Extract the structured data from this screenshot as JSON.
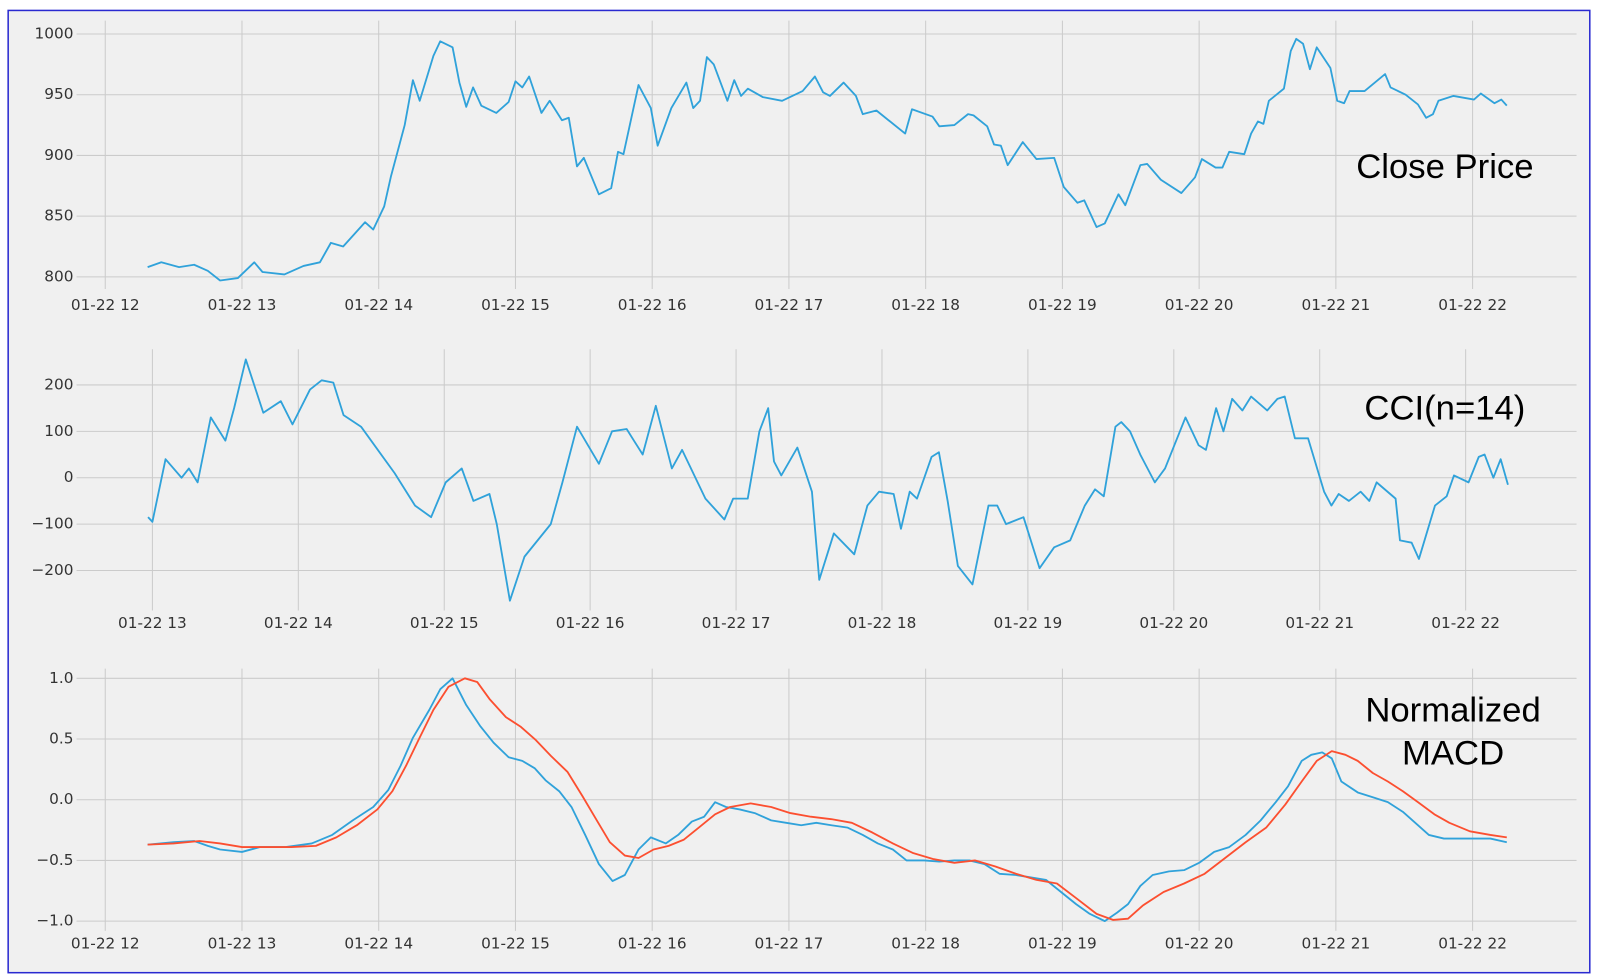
{
  "chart_data": [
    {
      "type": "line",
      "annotation": [
        "Close Price"
      ],
      "xlim": [
        11.79,
        22.76
      ],
      "xticks": [
        {
          "value": 12,
          "label": "01-22 12"
        },
        {
          "value": 13,
          "label": "01-22 13"
        },
        {
          "value": 14,
          "label": "01-22 14"
        },
        {
          "value": 15,
          "label": "01-22 15"
        },
        {
          "value": 16,
          "label": "01-22 16"
        },
        {
          "value": 17,
          "label": "01-22 17"
        },
        {
          "value": 18,
          "label": "01-22 18"
        },
        {
          "value": 19,
          "label": "01-22 19"
        },
        {
          "value": 20,
          "label": "01-22 20"
        },
        {
          "value": 21,
          "label": "01-22 21"
        },
        {
          "value": 22,
          "label": "01-22 22"
        }
      ],
      "ylim": [
        790,
        1011
      ],
      "yticks": [
        800,
        850,
        900,
        950,
        1000
      ],
      "grid": true,
      "series": [
        {
          "color": "#30a2da",
          "x": [
            12.31,
            12.41,
            12.54,
            12.65,
            12.75,
            12.84,
            12.97,
            13.09,
            13.15,
            13.31,
            13.45,
            13.57,
            13.65,
            13.74,
            13.9,
            13.96,
            14.04,
            14.09,
            14.19,
            14.25,
            14.3,
            14.4,
            14.45,
            14.54,
            14.59,
            14.64,
            14.69,
            14.75,
            14.86,
            14.95,
            15.0,
            15.05,
            15.1,
            15.19,
            15.25,
            15.34,
            15.39,
            15.45,
            15.5,
            15.61,
            15.7,
            15.75,
            15.79,
            15.9,
            15.99,
            16.04,
            16.14,
            16.25,
            16.3,
            16.35,
            16.4,
            16.45,
            16.55,
            16.6,
            16.65,
            16.7,
            16.81,
            16.95,
            17.1,
            17.19,
            17.25,
            17.3,
            17.4,
            17.49,
            17.54,
            17.64,
            17.85,
            17.9,
            18.05,
            18.1,
            18.21,
            18.31,
            18.35,
            18.45,
            18.5,
            18.55,
            18.6,
            18.71,
            18.81,
            18.94,
            19.01,
            19.11,
            19.16,
            19.25,
            19.31,
            19.41,
            19.46,
            19.57,
            19.62,
            19.72,
            19.87,
            19.97,
            20.02,
            20.12,
            20.17,
            20.22,
            20.33,
            20.38,
            20.43,
            20.47,
            20.51,
            20.62,
            20.67,
            20.71,
            20.76,
            20.81,
            20.86,
            20.96,
            21.01,
            21.06,
            21.1,
            21.21,
            21.36,
            21.4,
            21.51,
            21.6,
            21.66,
            21.71,
            21.75,
            21.86,
            22.01,
            22.06,
            22.16,
            22.21,
            22.25
          ],
          "values": [
            808,
            812,
            808,
            810,
            805,
            797,
            799,
            812,
            804,
            802,
            809,
            812,
            828,
            825,
            845,
            839,
            858,
            883,
            925,
            962,
            945,
            982,
            994,
            989,
            960,
            940,
            956,
            941,
            935,
            944,
            961,
            956,
            965,
            935,
            945,
            929,
            931,
            891,
            898,
            868,
            873,
            903,
            901,
            958,
            939,
            908,
            939,
            960,
            939,
            945,
            981,
            975,
            945,
            962,
            949,
            955,
            948,
            945,
            953,
            965,
            952,
            949,
            960,
            949,
            934,
            937,
            918,
            938,
            932,
            924,
            925,
            934,
            933,
            924,
            909,
            908,
            892,
            911,
            897,
            898,
            874,
            861,
            863,
            841,
            844,
            868,
            859,
            892,
            893,
            880,
            869,
            882,
            897,
            890,
            890,
            903,
            901,
            918,
            928,
            926,
            945,
            955,
            986,
            996,
            992,
            971,
            989,
            972,
            945,
            943,
            953,
            953,
            967,
            956,
            950,
            942,
            931,
            934,
            945,
            949,
            946,
            951,
            943,
            946,
            941
          ]
        }
      ]
    },
    {
      "type": "line",
      "annotation": [
        "CCI(n=14)"
      ],
      "xlim": [
        12.48,
        22.76
      ],
      "xticks": [
        {
          "value": 13,
          "label": "01-22 13"
        },
        {
          "value": 14,
          "label": "01-22 14"
        },
        {
          "value": 15,
          "label": "01-22 15"
        },
        {
          "value": 16,
          "label": "01-22 16"
        },
        {
          "value": 17,
          "label": "01-22 17"
        },
        {
          "value": 18,
          "label": "01-22 18"
        },
        {
          "value": 19,
          "label": "01-22 19"
        },
        {
          "value": 20,
          "label": "01-22 20"
        },
        {
          "value": 21,
          "label": "01-22 21"
        },
        {
          "value": 22,
          "label": "01-22 22"
        }
      ],
      "ylim": [
        -286,
        277
      ],
      "yticks": [
        {
          "value": -200,
          "label": "−200"
        },
        {
          "value": -100,
          "label": "−100"
        },
        0,
        100,
        200
      ],
      "grid": true,
      "series": [
        {
          "color": "#30a2da",
          "x": [
            12.97,
            13.0,
            13.09,
            13.2,
            13.25,
            13.31,
            13.4,
            13.5,
            13.56,
            13.64,
            13.76,
            13.88,
            13.96,
            14.08,
            14.16,
            14.24,
            14.31,
            14.43,
            14.66,
            14.8,
            14.91,
            15.01,
            15.12,
            15.2,
            15.31,
            15.36,
            15.45,
            15.55,
            15.73,
            15.81,
            15.91,
            16.06,
            16.15,
            16.25,
            16.36,
            16.45,
            16.56,
            16.63,
            16.79,
            16.92,
            16.98,
            17.08,
            17.16,
            17.22,
            17.26,
            17.31,
            17.42,
            17.52,
            17.57,
            17.67,
            17.81,
            17.9,
            17.98,
            18.08,
            18.13,
            18.19,
            18.24,
            18.34,
            18.39,
            18.45,
            18.52,
            18.62,
            18.73,
            18.79,
            18.85,
            18.97,
            19.08,
            19.18,
            19.29,
            19.39,
            19.46,
            19.52,
            19.6,
            19.64,
            19.7,
            19.77,
            19.87,
            19.94,
            20.08,
            20.17,
            20.22,
            20.29,
            20.34,
            20.4,
            20.47,
            20.53,
            20.64,
            20.71,
            20.76,
            20.83,
            20.92,
            21.03,
            21.08,
            21.13,
            21.2,
            21.28,
            21.34,
            21.39,
            21.52,
            21.55,
            21.63,
            21.68,
            21.79,
            21.87,
            21.92,
            22.02,
            22.09,
            22.13,
            22.19,
            22.24,
            22.29
          ],
          "values": [
            -85,
            -95,
            40,
            0,
            20,
            -10,
            130,
            80,
            150,
            255,
            140,
            165,
            115,
            190,
            210,
            205,
            135,
            110,
            10,
            -60,
            -85,
            -10,
            20,
            -50,
            -35,
            -100,
            -265,
            -170,
            -100,
            -10,
            110,
            30,
            100,
            105,
            50,
            155,
            20,
            60,
            -45,
            -90,
            -45,
            -45,
            100,
            150,
            35,
            5,
            65,
            -30,
            -220,
            -120,
            -165,
            -60,
            -30,
            -35,
            -110,
            -30,
            -45,
            45,
            55,
            -50,
            -190,
            -230,
            -60,
            -60,
            -100,
            -85,
            -195,
            -150,
            -135,
            -60,
            -25,
            -40,
            110,
            120,
            100,
            50,
            -10,
            20,
            130,
            70,
            60,
            150,
            100,
            170,
            145,
            175,
            145,
            170,
            175,
            85,
            85,
            -30,
            -60,
            -35,
            -50,
            -30,
            -50,
            -10,
            -45,
            -135,
            -140,
            -175,
            -60,
            -40,
            5,
            -10,
            45,
            50,
            0,
            40,
            -15
          ]
        }
      ]
    },
    {
      "type": "line",
      "annotation": [
        "Normalized",
        "MACD"
      ],
      "xlim": [
        11.79,
        22.76
      ],
      "xticks": [
        {
          "value": 12,
          "label": "01-22 12"
        },
        {
          "value": 13,
          "label": "01-22 13"
        },
        {
          "value": 14,
          "label": "01-22 14"
        },
        {
          "value": 15,
          "label": "01-22 15"
        },
        {
          "value": 16,
          "label": "01-22 16"
        },
        {
          "value": 17,
          "label": "01-22 17"
        },
        {
          "value": 18,
          "label": "01-22 18"
        },
        {
          "value": 19,
          "label": "01-22 19"
        },
        {
          "value": 20,
          "label": "01-22 20"
        },
        {
          "value": 21,
          "label": "01-22 21"
        },
        {
          "value": 22,
          "label": "01-22 22"
        }
      ],
      "ylim": [
        -1.08,
        1.08
      ],
      "yticks": [
        {
          "value": -1,
          "label": "−1.0"
        },
        {
          "value": -0.5,
          "label": "−0.5"
        },
        {
          "value": 0,
          "label": "0.0"
        },
        0.5,
        {
          "value": 1,
          "label": "1.0"
        }
      ],
      "grid": true,
      "series": [
        {
          "color": "#30a2da",
          "x": [
            12.31,
            12.5,
            12.65,
            12.75,
            12.84,
            13.0,
            13.13,
            13.32,
            13.51,
            13.66,
            13.81,
            13.96,
            14.07,
            14.16,
            14.25,
            14.37,
            14.45,
            14.54,
            14.64,
            14.74,
            14.84,
            14.95,
            15.05,
            15.14,
            15.22,
            15.32,
            15.41,
            15.51,
            15.61,
            15.71,
            15.8,
            15.9,
            15.99,
            16.1,
            16.19,
            16.29,
            16.38,
            16.46,
            16.54,
            16.64,
            16.75,
            16.87,
            16.98,
            17.09,
            17.2,
            17.31,
            17.43,
            17.54,
            17.65,
            17.76,
            17.86,
            17.99,
            18.1,
            18.21,
            18.32,
            18.43,
            18.54,
            18.66,
            18.77,
            18.88,
            18.99,
            19.1,
            19.2,
            19.31,
            19.4,
            19.48,
            19.57,
            19.66,
            19.78,
            19.89,
            20.0,
            20.11,
            20.22,
            20.34,
            20.45,
            20.56,
            20.65,
            20.75,
            20.82,
            20.9,
            20.97,
            21.04,
            21.16,
            21.27,
            21.38,
            21.49,
            21.6,
            21.68,
            21.79,
            21.9,
            22.01,
            22.13,
            22.25
          ],
          "values": [
            -0.37,
            -0.35,
            -0.34,
            -0.38,
            -0.41,
            -0.43,
            -0.39,
            -0.39,
            -0.36,
            -0.29,
            -0.17,
            -0.06,
            0.08,
            0.28,
            0.51,
            0.74,
            0.91,
            1.0,
            0.78,
            0.61,
            0.47,
            0.35,
            0.32,
            0.26,
            0.16,
            0.07,
            -0.06,
            -0.29,
            -0.53,
            -0.67,
            -0.62,
            -0.41,
            -0.31,
            -0.36,
            -0.29,
            -0.18,
            -0.14,
            -0.02,
            -0.06,
            -0.08,
            -0.11,
            -0.17,
            -0.19,
            -0.21,
            -0.19,
            -0.21,
            -0.23,
            -0.29,
            -0.36,
            -0.41,
            -0.5,
            -0.5,
            -0.51,
            -0.5,
            -0.5,
            -0.53,
            -0.61,
            -0.62,
            -0.64,
            -0.66,
            -0.76,
            -0.86,
            -0.94,
            -1.0,
            -0.93,
            -0.86,
            -0.71,
            -0.62,
            -0.59,
            -0.58,
            -0.52,
            -0.43,
            -0.39,
            -0.29,
            -0.17,
            -0.02,
            0.11,
            0.32,
            0.37,
            0.39,
            0.34,
            0.15,
            0.06,
            0.02,
            -0.02,
            -0.1,
            -0.21,
            -0.29,
            -0.32,
            -0.32,
            -0.32,
            -0.32,
            -0.35
          ]
        },
        {
          "color": "#fc4f30",
          "x": [
            12.31,
            12.5,
            12.69,
            12.84,
            13.0,
            13.17,
            13.36,
            13.54,
            13.69,
            13.84,
            13.99,
            14.1,
            14.2,
            14.29,
            14.4,
            14.51,
            14.63,
            14.72,
            14.81,
            14.93,
            15.04,
            15.15,
            15.26,
            15.38,
            15.49,
            15.6,
            15.69,
            15.8,
            15.9,
            16.01,
            16.12,
            16.23,
            16.34,
            16.46,
            16.57,
            16.72,
            16.87,
            17.01,
            17.16,
            17.31,
            17.46,
            17.61,
            17.76,
            17.91,
            18.06,
            18.21,
            18.36,
            18.51,
            18.66,
            18.81,
            18.96,
            19.1,
            19.25,
            19.37,
            19.48,
            19.59,
            19.74,
            19.89,
            20.04,
            20.19,
            20.34,
            20.49,
            20.63,
            20.75,
            20.86,
            20.97,
            21.07,
            21.16,
            21.27,
            21.38,
            21.49,
            21.6,
            21.72,
            21.83,
            21.98,
            22.13,
            22.25
          ],
          "values": [
            -0.37,
            -0.36,
            -0.34,
            -0.36,
            -0.39,
            -0.39,
            -0.39,
            -0.38,
            -0.31,
            -0.21,
            -0.08,
            0.07,
            0.28,
            0.49,
            0.74,
            0.93,
            1.0,
            0.97,
            0.83,
            0.68,
            0.6,
            0.49,
            0.36,
            0.23,
            0.03,
            -0.18,
            -0.35,
            -0.46,
            -0.48,
            -0.41,
            -0.38,
            -0.33,
            -0.23,
            -0.12,
            -0.06,
            -0.03,
            -0.06,
            -0.11,
            -0.14,
            -0.16,
            -0.19,
            -0.27,
            -0.36,
            -0.44,
            -0.49,
            -0.52,
            -0.5,
            -0.55,
            -0.61,
            -0.66,
            -0.69,
            -0.81,
            -0.94,
            -0.99,
            -0.98,
            -0.87,
            -0.76,
            -0.69,
            -0.61,
            -0.48,
            -0.35,
            -0.23,
            -0.04,
            0.15,
            0.32,
            0.4,
            0.37,
            0.32,
            0.22,
            0.15,
            0.07,
            -0.02,
            -0.12,
            -0.19,
            -0.26,
            -0.29,
            -0.31
          ]
        }
      ]
    }
  ]
}
